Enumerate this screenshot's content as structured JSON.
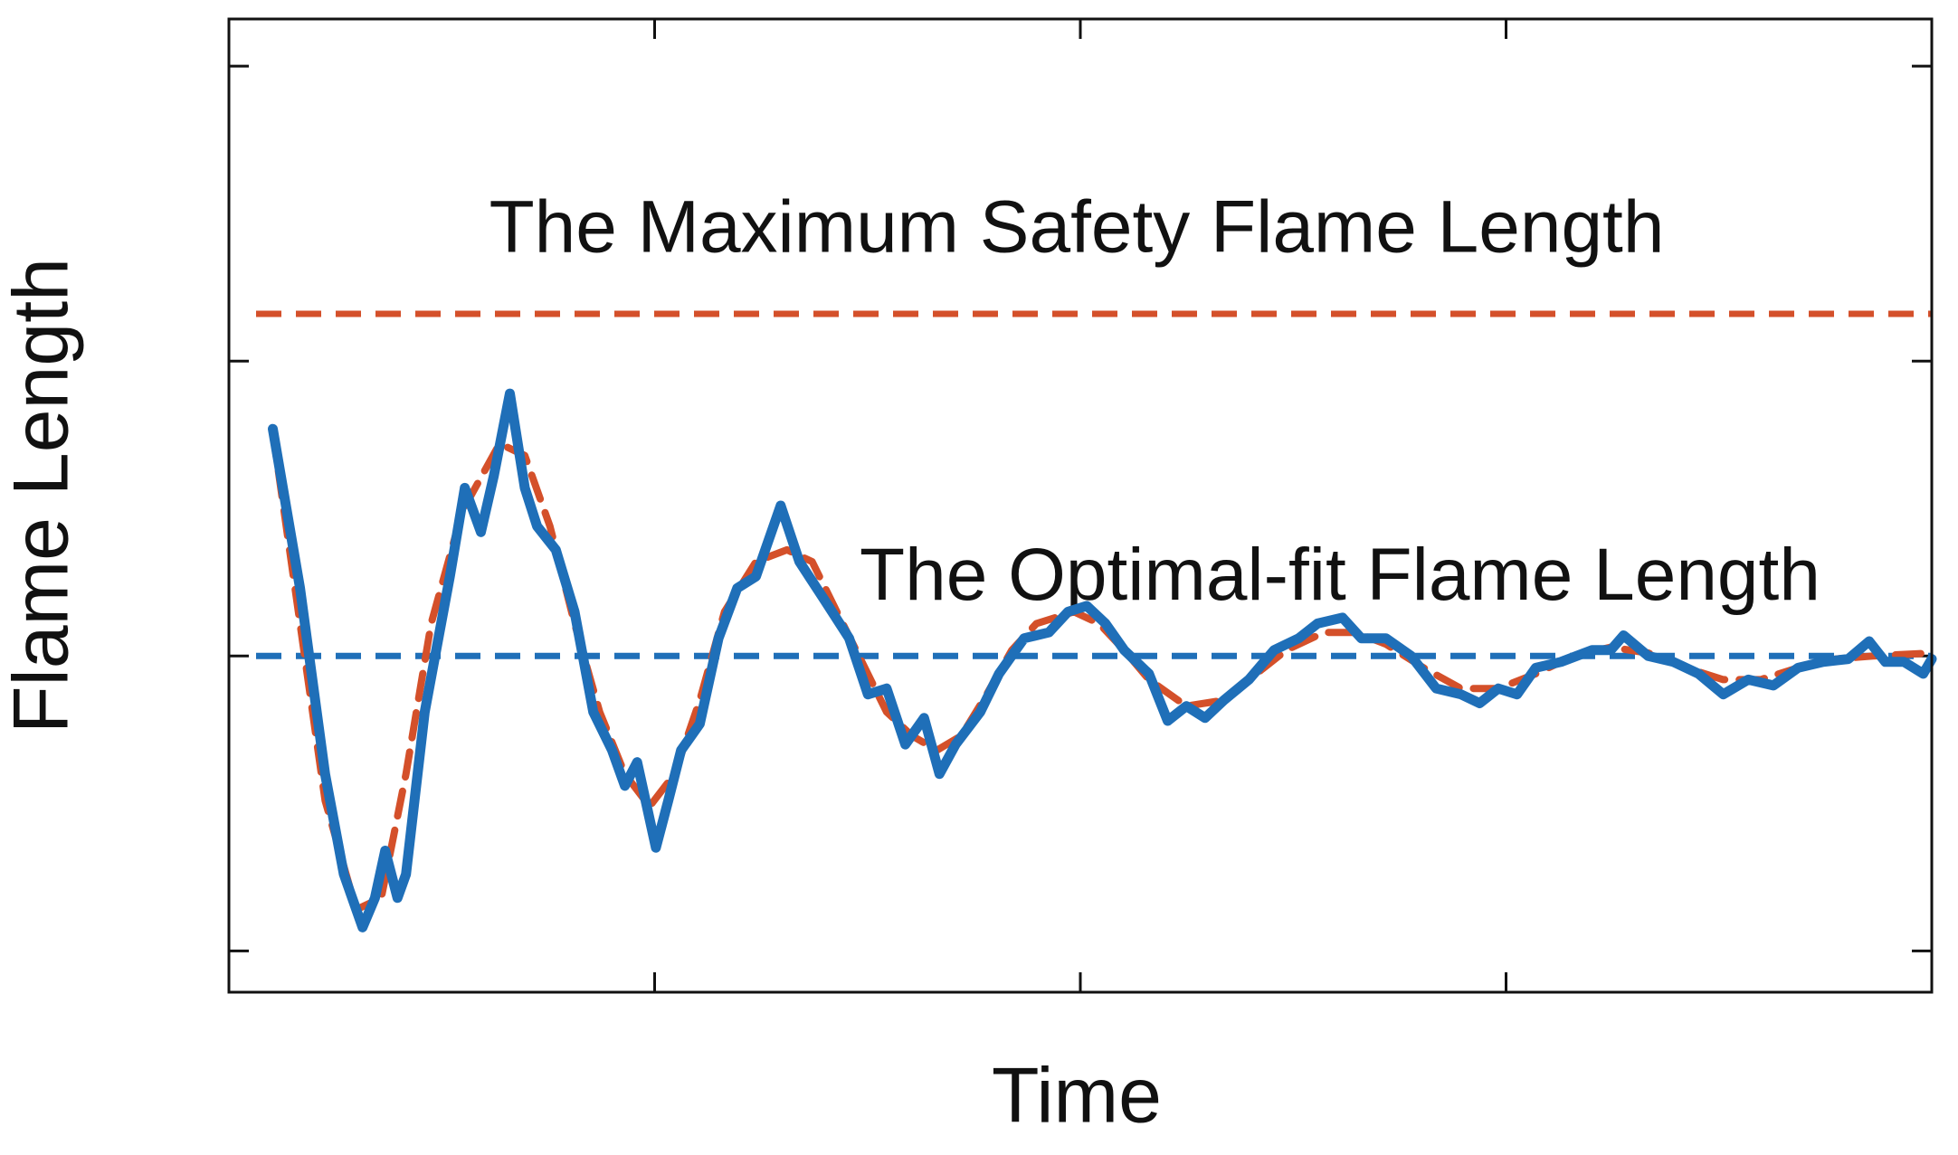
{
  "chart_data": {
    "type": "line",
    "x_label": "Time",
    "y_label": "Flame Length",
    "xlim": [
      0,
      4
    ],
    "ylim": [
      -0.14,
      3.16
    ],
    "xticks": [
      1,
      2,
      3
    ],
    "yticks": [
      0,
      1,
      2,
      3
    ],
    "grid": false,
    "reference_lines": [
      {
        "label": "The Maximum Safety Flame Length",
        "value": 2.16,
        "color": "#d4502a",
        "linestyle": "dashed"
      },
      {
        "label": "The Optimal-fit Flame Length",
        "value": 1.0,
        "color": "#1f6fb8",
        "linestyle": "dashed"
      }
    ],
    "series": [
      {
        "color": "#d4502a",
        "linestyle": "dashed",
        "x": [
          0.103,
          0.167,
          0.226,
          0.299,
          0.358,
          0.416,
          0.475,
          0.548,
          0.636,
          0.695,
          0.754,
          0.812,
          0.871,
          0.93,
          0.988,
          1.047,
          1.106,
          1.164,
          1.238,
          1.311,
          1.37,
          1.428,
          1.487,
          1.545,
          1.604,
          1.663,
          1.721,
          1.78,
          1.839,
          1.897,
          1.985,
          2.044,
          2.103,
          2.161,
          2.249,
          2.337,
          2.396,
          2.484,
          2.572,
          2.645,
          2.718,
          2.806,
          2.894,
          2.982,
          3.07,
          3.158,
          3.246,
          3.334,
          3.422,
          3.51,
          3.598,
          3.686,
          3.774,
          3.862,
          4.0
        ],
        "values": [
          1.76,
          1.11,
          0.51,
          0.14,
          0.18,
          0.6,
          1.11,
          1.49,
          1.72,
          1.68,
          1.44,
          1.11,
          0.81,
          0.6,
          0.49,
          0.6,
          0.85,
          1.15,
          1.32,
          1.36,
          1.32,
          1.15,
          0.98,
          0.81,
          0.73,
          0.68,
          0.73,
          0.87,
          1.02,
          1.11,
          1.15,
          1.11,
          1.02,
          0.92,
          0.83,
          0.85,
          0.92,
          1.02,
          1.08,
          1.08,
          1.04,
          0.96,
          0.89,
          0.89,
          0.94,
          1.0,
          1.03,
          1.01,
          0.96,
          0.92,
          0.92,
          0.96,
          0.99,
          1.0,
          1.01
        ]
      },
      {
        "color": "#1f6fb8",
        "linestyle": "solid",
        "x": [
          0.103,
          0.167,
          0.226,
          0.27,
          0.314,
          0.343,
          0.367,
          0.396,
          0.416,
          0.46,
          0.519,
          0.554,
          0.592,
          0.622,
          0.66,
          0.695,
          0.724,
          0.768,
          0.812,
          0.856,
          0.9,
          0.93,
          0.959,
          1.003,
          1.032,
          1.062,
          1.106,
          1.15,
          1.194,
          1.238,
          1.296,
          1.34,
          1.399,
          1.457,
          1.501,
          1.545,
          1.589,
          1.633,
          1.669,
          1.707,
          1.765,
          1.809,
          1.868,
          1.926,
          1.971,
          2.015,
          2.059,
          2.103,
          2.161,
          2.205,
          2.249,
          2.293,
          2.337,
          2.396,
          2.455,
          2.513,
          2.557,
          2.616,
          2.66,
          2.718,
          2.777,
          2.836,
          2.894,
          2.938,
          2.982,
          3.026,
          3.07,
          3.129,
          3.202,
          3.246,
          3.276,
          3.334,
          3.393,
          3.452,
          3.51,
          3.569,
          3.628,
          3.686,
          3.745,
          3.804,
          3.853,
          3.891,
          3.935,
          3.98,
          4.0
        ],
        "values": [
          1.77,
          1.23,
          0.6,
          0.26,
          0.08,
          0.18,
          0.34,
          0.18,
          0.26,
          0.81,
          1.27,
          1.57,
          1.42,
          1.61,
          1.89,
          1.57,
          1.44,
          1.36,
          1.15,
          0.81,
          0.68,
          0.56,
          0.64,
          0.35,
          0.51,
          0.68,
          0.77,
          1.06,
          1.23,
          1.27,
          1.51,
          1.32,
          1.19,
          1.06,
          0.87,
          0.89,
          0.7,
          0.79,
          0.6,
          0.7,
          0.81,
          0.94,
          1.06,
          1.08,
          1.15,
          1.17,
          1.11,
          1.02,
          0.94,
          0.78,
          0.83,
          0.79,
          0.85,
          0.92,
          1.02,
          1.06,
          1.11,
          1.13,
          1.06,
          1.06,
          1.0,
          0.89,
          0.87,
          0.84,
          0.89,
          0.87,
          0.96,
          0.98,
          1.02,
          1.02,
          1.07,
          1.0,
          0.98,
          0.94,
          0.87,
          0.92,
          0.9,
          0.96,
          0.98,
          0.99,
          1.05,
          0.98,
          0.98,
          0.94,
          0.99
        ]
      }
    ]
  }
}
